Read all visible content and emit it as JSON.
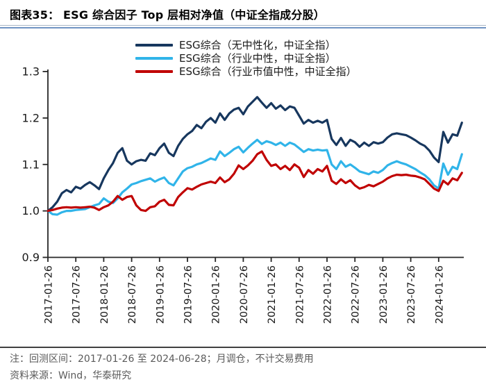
{
  "header": {
    "title": "图表35：  ESG 综合因子 Top 层相对净值（中证全指成分股）"
  },
  "legend": {
    "items": [
      {
        "label": "ESG综合（无中性化，中证全指）",
        "color": "#17375E"
      },
      {
        "label": "ESG综合（行业中性，中证全指）",
        "color": "#30B4E9"
      },
      {
        "label": "ESG综合（行业市值中性，中证全指）",
        "color": "#C00000"
      }
    ]
  },
  "footer": {
    "note": "注：回测区间：2017-01-26 至 2024-06-28；月调仓，不计交易费用",
    "source": "资料来源：Wind，华泰研究"
  },
  "chart_data": {
    "type": "line",
    "title": "ESG 综合因子 Top 层相对净值（中证全指成分股）",
    "xlabel": "",
    "ylabel": "",
    "ylim": [
      0.9,
      1.3
    ],
    "y_ticks": [
      0.9,
      1.0,
      1.1,
      1.2,
      1.3
    ],
    "x_tick_labels": [
      "2017-01-26",
      "2017-07-26",
      "2018-01-26",
      "2018-07-26",
      "2019-01-26",
      "2019-07-26",
      "2020-01-26",
      "2020-07-26",
      "2021-01-26",
      "2021-07-26",
      "2022-01-26",
      "2022-07-26",
      "2023-01-26",
      "2023-07-26",
      "2024-01-26"
    ],
    "x_start": "2017-01-26",
    "x_end": "2024-06-28",
    "x_frequency": "monthly",
    "grid": false,
    "legend_position": "top",
    "series": [
      {
        "name": "ESG综合（无中性化，中证全指）",
        "color": "#17375E",
        "values": [
          1.0,
          1.008,
          1.02,
          1.038,
          1.045,
          1.04,
          1.052,
          1.048,
          1.056,
          1.062,
          1.055,
          1.047,
          1.07,
          1.088,
          1.103,
          1.125,
          1.135,
          1.108,
          1.1,
          1.107,
          1.11,
          1.108,
          1.124,
          1.12,
          1.135,
          1.145,
          1.125,
          1.118,
          1.14,
          1.155,
          1.165,
          1.172,
          1.185,
          1.178,
          1.192,
          1.2,
          1.19,
          1.21,
          1.196,
          1.21,
          1.218,
          1.222,
          1.208,
          1.225,
          1.235,
          1.245,
          1.233,
          1.222,
          1.232,
          1.22,
          1.227,
          1.217,
          1.225,
          1.222,
          1.205,
          1.188,
          1.196,
          1.19,
          1.194,
          1.19,
          1.196,
          1.155,
          1.142,
          1.157,
          1.14,
          1.153,
          1.148,
          1.138,
          1.147,
          1.14,
          1.148,
          1.145,
          1.148,
          1.158,
          1.165,
          1.167,
          1.165,
          1.163,
          1.158,
          1.152,
          1.145,
          1.14,
          1.13,
          1.115,
          1.105,
          1.17,
          1.147,
          1.165,
          1.162,
          1.19
        ]
      },
      {
        "name": "ESG综合（行业中性，中证全指）",
        "color": "#30B4E9",
        "values": [
          1.0,
          0.993,
          0.992,
          0.997,
          1.0,
          1.0,
          1.002,
          1.003,
          1.004,
          1.008,
          1.012,
          1.015,
          1.027,
          1.02,
          1.017,
          1.027,
          1.04,
          1.048,
          1.057,
          1.06,
          1.064,
          1.067,
          1.07,
          1.063,
          1.068,
          1.072,
          1.06,
          1.055,
          1.07,
          1.085,
          1.092,
          1.095,
          1.1,
          1.103,
          1.108,
          1.113,
          1.11,
          1.128,
          1.118,
          1.125,
          1.133,
          1.138,
          1.126,
          1.136,
          1.145,
          1.153,
          1.144,
          1.15,
          1.147,
          1.142,
          1.147,
          1.14,
          1.147,
          1.143,
          1.135,
          1.127,
          1.133,
          1.13,
          1.132,
          1.13,
          1.131,
          1.1,
          1.09,
          1.107,
          1.095,
          1.1,
          1.093,
          1.085,
          1.082,
          1.079,
          1.085,
          1.082,
          1.088,
          1.098,
          1.103,
          1.107,
          1.103,
          1.1,
          1.095,
          1.09,
          1.083,
          1.077,
          1.068,
          1.055,
          1.048,
          1.102,
          1.078,
          1.095,
          1.09,
          1.122
        ]
      },
      {
        "name": "ESG综合（行业市值中性，中证全指）",
        "color": "#C00000",
        "values": [
          1.0,
          1.002,
          1.005,
          1.007,
          1.008,
          1.007,
          1.008,
          1.007,
          1.008,
          1.009,
          1.007,
          1.002,
          1.008,
          1.012,
          1.02,
          1.032,
          1.024,
          1.03,
          1.032,
          1.012,
          1.002,
          1.0,
          1.008,
          1.01,
          1.02,
          1.024,
          1.013,
          1.012,
          1.03,
          1.04,
          1.049,
          1.046,
          1.052,
          1.057,
          1.06,
          1.063,
          1.06,
          1.072,
          1.062,
          1.068,
          1.08,
          1.098,
          1.09,
          1.098,
          1.108,
          1.122,
          1.128,
          1.11,
          1.097,
          1.1,
          1.09,
          1.097,
          1.088,
          1.1,
          1.093,
          1.073,
          1.088,
          1.08,
          1.09,
          1.085,
          1.097,
          1.065,
          1.058,
          1.068,
          1.06,
          1.066,
          1.055,
          1.048,
          1.051,
          1.056,
          1.053,
          1.058,
          1.063,
          1.07,
          1.075,
          1.078,
          1.077,
          1.078,
          1.076,
          1.075,
          1.072,
          1.068,
          1.058,
          1.048,
          1.043,
          1.065,
          1.057,
          1.07,
          1.066,
          1.082
        ]
      }
    ]
  }
}
